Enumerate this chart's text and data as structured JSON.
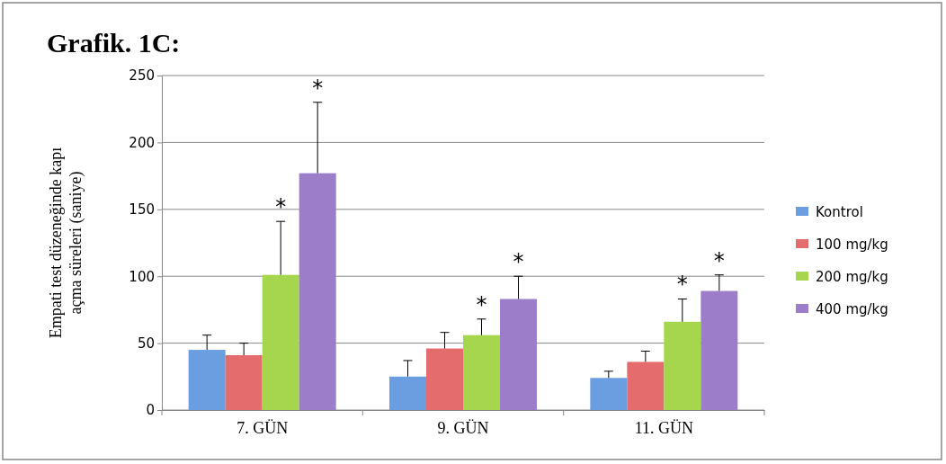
{
  "chart_data": {
    "type": "bar",
    "title": "Grafik. 1C:",
    "ylabel": "Empati test düzeneğinde kapı açma süreleri (saniye)",
    "categories": [
      "7. GÜN",
      "9. GÜN",
      "11. GÜN"
    ],
    "series": [
      {
        "name": "Kontrol",
        "color": "#6a9ee0",
        "values": [
          45,
          25,
          24
        ],
        "errors": [
          [
            45,
            56
          ],
          [
            25,
            37
          ],
          [
            24,
            29
          ]
        ]
      },
      {
        "name": "100 mg/kg",
        "color": "#e46c6c",
        "values": [
          41,
          46,
          36
        ],
        "errors": [
          [
            41,
            50
          ],
          [
            46,
            58
          ],
          [
            36,
            44
          ]
        ]
      },
      {
        "name": "200 mg/kg",
        "color": "#a5d64e",
        "values": [
          101,
          56,
          66
        ],
        "errors": [
          [
            101,
            141
          ],
          [
            56,
            68
          ],
          [
            66,
            83
          ]
        ]
      },
      {
        "name": "400 mg/kg",
        "color": "#9b7dca",
        "values": [
          177,
          83,
          89
        ],
        "errors": [
          [
            177,
            230
          ],
          [
            83,
            100
          ],
          [
            89,
            101
          ]
        ]
      }
    ],
    "ylim": [
      0,
      250
    ],
    "yticks": [
      0,
      50,
      100,
      150,
      200,
      250
    ],
    "grid": "y",
    "legend": "right",
    "annotations": [
      "*",
      "*",
      "*",
      "*",
      "*",
      "*"
    ]
  }
}
